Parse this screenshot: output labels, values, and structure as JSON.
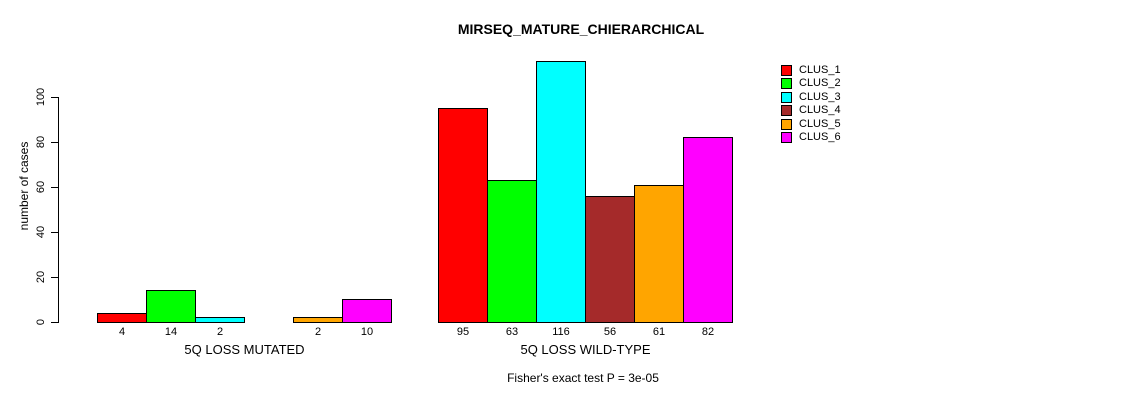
{
  "chart_data": {
    "type": "bar",
    "title": "MIRSEQ_MATURE_CHIERARCHICAL",
    "ylabel": "number of cases",
    "xlabel": "",
    "yticks": [
      0,
      20,
      40,
      60,
      80,
      100
    ],
    "ylim": [
      0,
      118
    ],
    "grid": false,
    "legend_position": "right",
    "series_colors": [
      "#FF0000",
      "#00FF00",
      "#00FFFF",
      "#A52A2A",
      "#FFA500",
      "#FF00FF"
    ],
    "legend": [
      {
        "label": "CLUS_1",
        "color": "#FF0000"
      },
      {
        "label": "CLUS_2",
        "color": "#00FF00"
      },
      {
        "label": "CLUS_3",
        "color": "#00FFFF"
      },
      {
        "label": "CLUS_4",
        "color": "#A52A2A"
      },
      {
        "label": "CLUS_5",
        "color": "#FFA500"
      },
      {
        "label": "CLUS_6",
        "color": "#FF00FF"
      }
    ],
    "groups": [
      {
        "label": "5Q LOSS MUTATED",
        "values": [
          4,
          14,
          2,
          0,
          2,
          10
        ],
        "bar_labels": [
          "4",
          "14",
          "2",
          "",
          "2",
          "10"
        ]
      },
      {
        "label": "5Q LOSS WILD-TYPE",
        "values": [
          95,
          63,
          116,
          56,
          61,
          82
        ],
        "bar_labels": [
          "95",
          "63",
          "116",
          "56",
          "61",
          "82"
        ]
      }
    ],
    "annotation": "Fisher's exact test P = 3e-05"
  }
}
